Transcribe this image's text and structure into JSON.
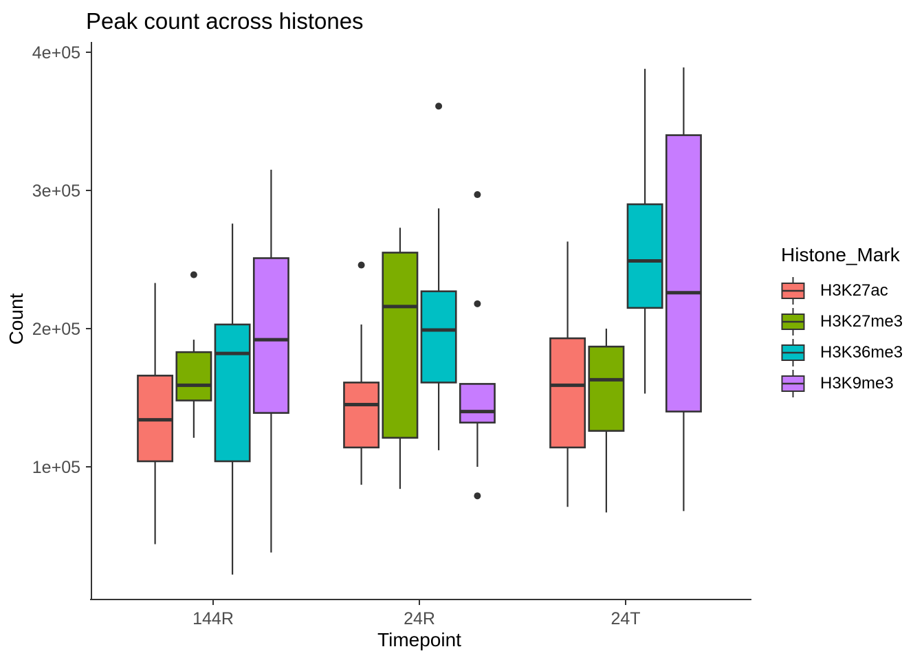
{
  "chart_data": {
    "type": "boxplot",
    "title": "Peak count across histones",
    "xlabel": "Timepoint",
    "ylabel": "Count",
    "legend_title": "Histone_Mark",
    "legend_position": "right",
    "grid": false,
    "categories": [
      "144R",
      "24R",
      "24T"
    ],
    "y_ticks": [
      100000,
      200000,
      300000,
      400000
    ],
    "y_tick_labels": [
      "1e+05",
      "2e+05",
      "3e+05",
      "4e+05"
    ],
    "ylim": [
      4500,
      408000
    ],
    "series": [
      {
        "name": "H3K27ac",
        "color": "#F8766D",
        "boxes": [
          {
            "category": "144R",
            "low": 44000,
            "q1": 104000,
            "median": 134000,
            "q3": 166000,
            "high": 233000,
            "outliers": []
          },
          {
            "category": "24R",
            "low": 87000,
            "q1": 114000,
            "median": 145000,
            "q3": 161000,
            "high": 203000,
            "outliers": [
              246000
            ]
          },
          {
            "category": "24T",
            "low": 71000,
            "q1": 114000,
            "median": 159000,
            "q3": 193000,
            "high": 263000,
            "outliers": []
          }
        ]
      },
      {
        "name": "H3K27me3",
        "color": "#7CAE00",
        "boxes": [
          {
            "category": "144R",
            "low": 121000,
            "q1": 148000,
            "median": 159000,
            "q3": 183000,
            "high": 192000,
            "outliers": [
              239000
            ]
          },
          {
            "category": "24R",
            "low": 84000,
            "q1": 121000,
            "median": 216000,
            "q3": 255000,
            "high": 273000,
            "outliers": []
          },
          {
            "category": "24T",
            "low": 67000,
            "q1": 126000,
            "median": 163000,
            "q3": 187000,
            "high": 200000,
            "outliers": []
          }
        ]
      },
      {
        "name": "H3K36me3",
        "color": "#00BFC4",
        "boxes": [
          {
            "category": "144R",
            "low": 22000,
            "q1": 104000,
            "median": 182000,
            "q3": 203000,
            "high": 276000,
            "outliers": []
          },
          {
            "category": "24R",
            "low": 112000,
            "q1": 161000,
            "median": 199000,
            "q3": 227000,
            "high": 287000,
            "outliers": [
              361000
            ]
          },
          {
            "category": "24T",
            "low": 153000,
            "q1": 215000,
            "median": 249000,
            "q3": 290000,
            "high": 388000,
            "outliers": []
          }
        ]
      },
      {
        "name": "H3K9me3",
        "color": "#C77CFF",
        "boxes": [
          {
            "category": "144R",
            "low": 38000,
            "q1": 139000,
            "median": 192000,
            "q3": 251000,
            "high": 315000,
            "outliers": []
          },
          {
            "category": "24R",
            "low": 100000,
            "q1": 132000,
            "median": 140000,
            "q3": 160000,
            "high": 160000,
            "outliers": [
              297000,
              218000,
              79000
            ]
          },
          {
            "category": "24T",
            "low": 68000,
            "q1": 140000,
            "median": 226000,
            "q3": 340000,
            "high": 389000,
            "outliers": []
          }
        ]
      }
    ],
    "style": {
      "box_border_color": "#333333",
      "median_color": "#333333",
      "outlier_color": "#333333",
      "axis_color": "#333333",
      "tick_label_color": "#4D4D4D",
      "text_color": "#000000",
      "background": "#FFFFFF"
    }
  }
}
